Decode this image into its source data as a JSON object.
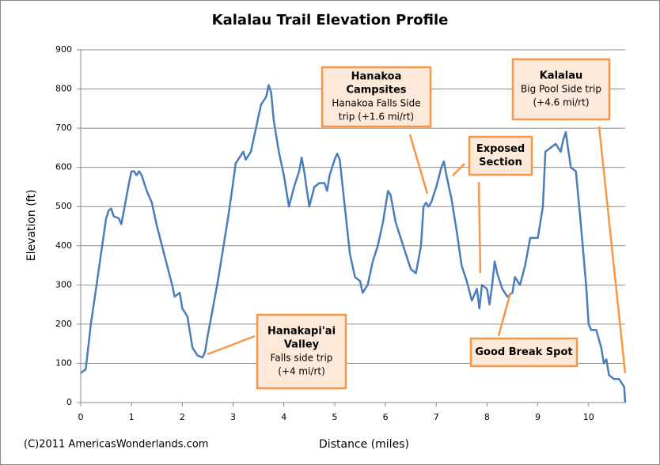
{
  "chart_data": {
    "type": "line",
    "title": "Kalalau Trail Elevation Profile",
    "x_label": "Distance (miles)",
    "y_label": "Elevation (ft)",
    "credit": "(C)2011 AmericasWonderlands.com",
    "color": "#4a7ebb",
    "grid": true,
    "xlim": [
      0,
      10.72
    ],
    "xticks": [
      0,
      1,
      2,
      3,
      4,
      5,
      6,
      7,
      8,
      9,
      10
    ],
    "ylim": [
      0,
      900
    ],
    "yticks": [
      0,
      100,
      200,
      300,
      400,
      500,
      600,
      700,
      800,
      900
    ],
    "x": [
      0,
      0.1,
      0.2,
      0.3,
      0.4,
      0.5,
      0.55,
      0.6,
      0.65,
      0.75,
      0.8,
      0.85,
      0.95,
      1.0,
      1.05,
      1.1,
      1.15,
      1.2,
      1.3,
      1.4,
      1.5,
      1.6,
      1.7,
      1.8,
      1.85,
      1.95,
      2.0,
      2.1,
      2.15,
      2.2,
      2.3,
      2.4,
      2.45,
      2.5,
      2.6,
      2.7,
      2.8,
      2.9,
      3.0,
      3.05,
      3.15,
      3.2,
      3.25,
      3.35,
      3.45,
      3.55,
      3.65,
      3.7,
      3.75,
      3.8,
      3.9,
      4.0,
      4.1,
      4.2,
      4.3,
      4.35,
      4.4,
      4.5,
      4.6,
      4.7,
      4.8,
      4.85,
      4.9,
      5.0,
      5.05,
      5.1,
      5.2,
      5.3,
      5.4,
      5.5,
      5.55,
      5.65,
      5.75,
      5.85,
      5.95,
      6.05,
      6.1,
      6.2,
      6.3,
      6.4,
      6.5,
      6.6,
      6.7,
      6.75,
      6.8,
      6.85,
      6.9,
      7.0,
      7.1,
      7.15,
      7.2,
      7.3,
      7.4,
      7.5,
      7.6,
      7.7,
      7.8,
      7.85,
      7.9,
      8.0,
      8.05,
      8.1,
      8.15,
      8.2,
      8.3,
      8.4,
      8.5,
      8.55,
      8.65,
      8.75,
      8.85,
      9.0,
      9.1,
      9.15,
      9.25,
      9.35,
      9.45,
      9.5,
      9.55,
      9.65,
      9.75,
      9.85,
      9.95,
      10.0,
      10.05,
      10.15,
      10.25,
      10.3,
      10.35,
      10.4,
      10.5,
      10.6,
      10.7,
      10.72
    ],
    "values": [
      75,
      85,
      200,
      290,
      380,
      470,
      490,
      495,
      475,
      470,
      455,
      490,
      560,
      590,
      590,
      580,
      590,
      580,
      540,
      510,
      450,
      400,
      350,
      300,
      270,
      280,
      240,
      220,
      180,
      140,
      120,
      115,
      130,
      170,
      240,
      310,
      390,
      470,
      560,
      610,
      630,
      640,
      620,
      640,
      700,
      760,
      780,
      810,
      790,
      720,
      640,
      580,
      500,
      550,
      590,
      625,
      590,
      500,
      550,
      560,
      560,
      540,
      580,
      620,
      635,
      620,
      500,
      380,
      320,
      310,
      280,
      300,
      360,
      400,
      460,
      540,
      530,
      460,
      420,
      380,
      340,
      330,
      400,
      500,
      510,
      500,
      510,
      550,
      600,
      615,
      580,
      520,
      440,
      350,
      310,
      260,
      290,
      240,
      300,
      290,
      250,
      300,
      360,
      330,
      290,
      270,
      280,
      320,
      300,
      350,
      420,
      420,
      500,
      640,
      650,
      660,
      640,
      670,
      690,
      600,
      590,
      450,
      300,
      200,
      185,
      185,
      140,
      100,
      110,
      70,
      60,
      60,
      40,
      0
    ],
    "annotations": [
      {
        "title_lines": [
          "Hanakapi'ai",
          "Valley"
        ],
        "text_lines": [
          "Falls side trip",
          "(+4 mi/rt)"
        ]
      },
      {
        "title_lines": [
          "Hanakoa",
          "Campsites"
        ],
        "text_lines": [
          "Hanakoa Falls Side",
          "trip (+1.6 mi/rt)"
        ]
      },
      {
        "title_lines": [
          "Exposed",
          "Section"
        ],
        "text_lines": []
      },
      {
        "title_lines": [
          "Good Break Spot"
        ],
        "text_lines": []
      },
      {
        "title_lines": [
          "Kalalau"
        ],
        "text_lines": [
          "Big Pool Side trip",
          "(+4.6 mi/rt)"
        ]
      }
    ]
  }
}
